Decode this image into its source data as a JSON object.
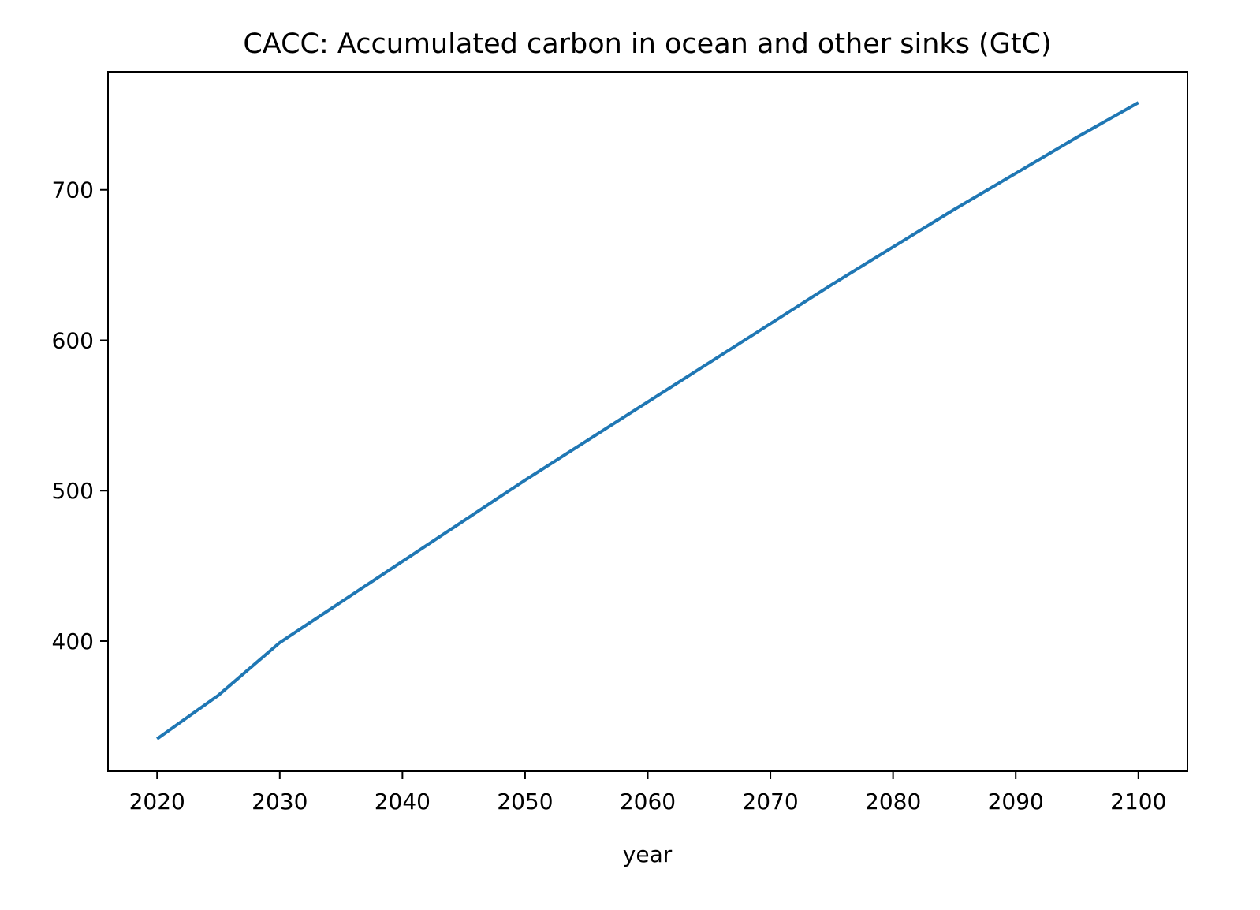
{
  "chart_data": {
    "type": "line",
    "title": "CACC: Accumulated carbon in ocean and other sinks (GtC)",
    "xlabel": "year",
    "ylabel": "",
    "xlim": [
      2016,
      2104
    ],
    "ylim": [
      313.5,
      778.5
    ],
    "x_ticks": [
      2020,
      2030,
      2040,
      2050,
      2060,
      2070,
      2080,
      2090,
      2100
    ],
    "y_ticks": [
      400,
      500,
      600,
      700
    ],
    "grid": false,
    "legend": null,
    "series": [
      {
        "color": "#1f77b4",
        "x": [
          2020,
          2025,
          2030,
          2035,
          2040,
          2045,
          2050,
          2055,
          2060,
          2065,
          2070,
          2075,
          2080,
          2085,
          2090,
          2095,
          2100
        ],
        "y": [
          335,
          364,
          399,
          426,
          453,
          480,
          507,
          533,
          559,
          585,
          611,
          637,
          662,
          687,
          711,
          735,
          758
        ]
      }
    ]
  }
}
